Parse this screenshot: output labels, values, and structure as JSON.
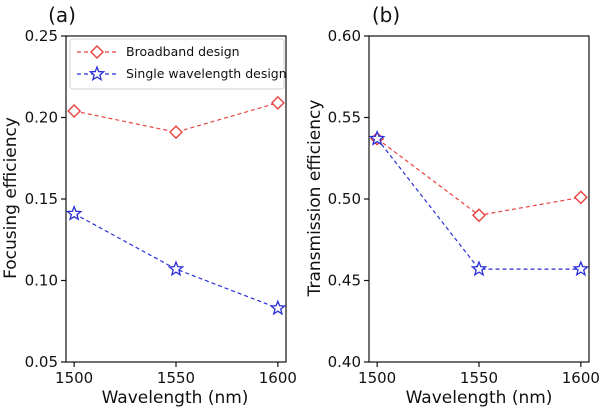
{
  "chart_data": [
    {
      "type": "line",
      "panel_label": "(a)",
      "xlabel": "Wavelength (nm)",
      "ylabel": "Focusing efficiency",
      "x": [
        1500,
        1550,
        1600
      ],
      "xticks": [
        "1500",
        "1550",
        "1600"
      ],
      "yticks": [
        "0.05",
        "0.10",
        "0.15",
        "0.20",
        "0.25"
      ],
      "xlim": [
        1496,
        1604
      ],
      "ylim": [
        0.05,
        0.25
      ],
      "legend_position": "upper-left",
      "series": [
        {
          "name": "Broadband design",
          "color": "#e8423f",
          "marker": "diamond",
          "values": [
            0.204,
            0.191,
            0.209
          ]
        },
        {
          "name": "Single wavelength design",
          "color": "#2a2ed6",
          "marker": "star",
          "values": [
            0.141,
            0.107,
            0.083
          ]
        }
      ]
    },
    {
      "type": "line",
      "panel_label": "(b)",
      "xlabel": "Wavelength (nm)",
      "ylabel": "Transmission efficiency",
      "x": [
        1500,
        1550,
        1600
      ],
      "xticks": [
        "1500",
        "1550",
        "1600"
      ],
      "yticks": [
        "0.40",
        "0.45",
        "0.50",
        "0.55",
        "0.60"
      ],
      "xlim": [
        1496,
        1604
      ],
      "ylim": [
        0.4,
        0.6
      ],
      "series": [
        {
          "name": "Broadband design",
          "color": "#e8423f",
          "marker": "diamond",
          "values": [
            0.537,
            0.49,
            0.501
          ]
        },
        {
          "name": "Single wavelength design",
          "color": "#2a2ed6",
          "marker": "star",
          "values": [
            0.537,
            0.457,
            0.457
          ]
        }
      ]
    }
  ]
}
